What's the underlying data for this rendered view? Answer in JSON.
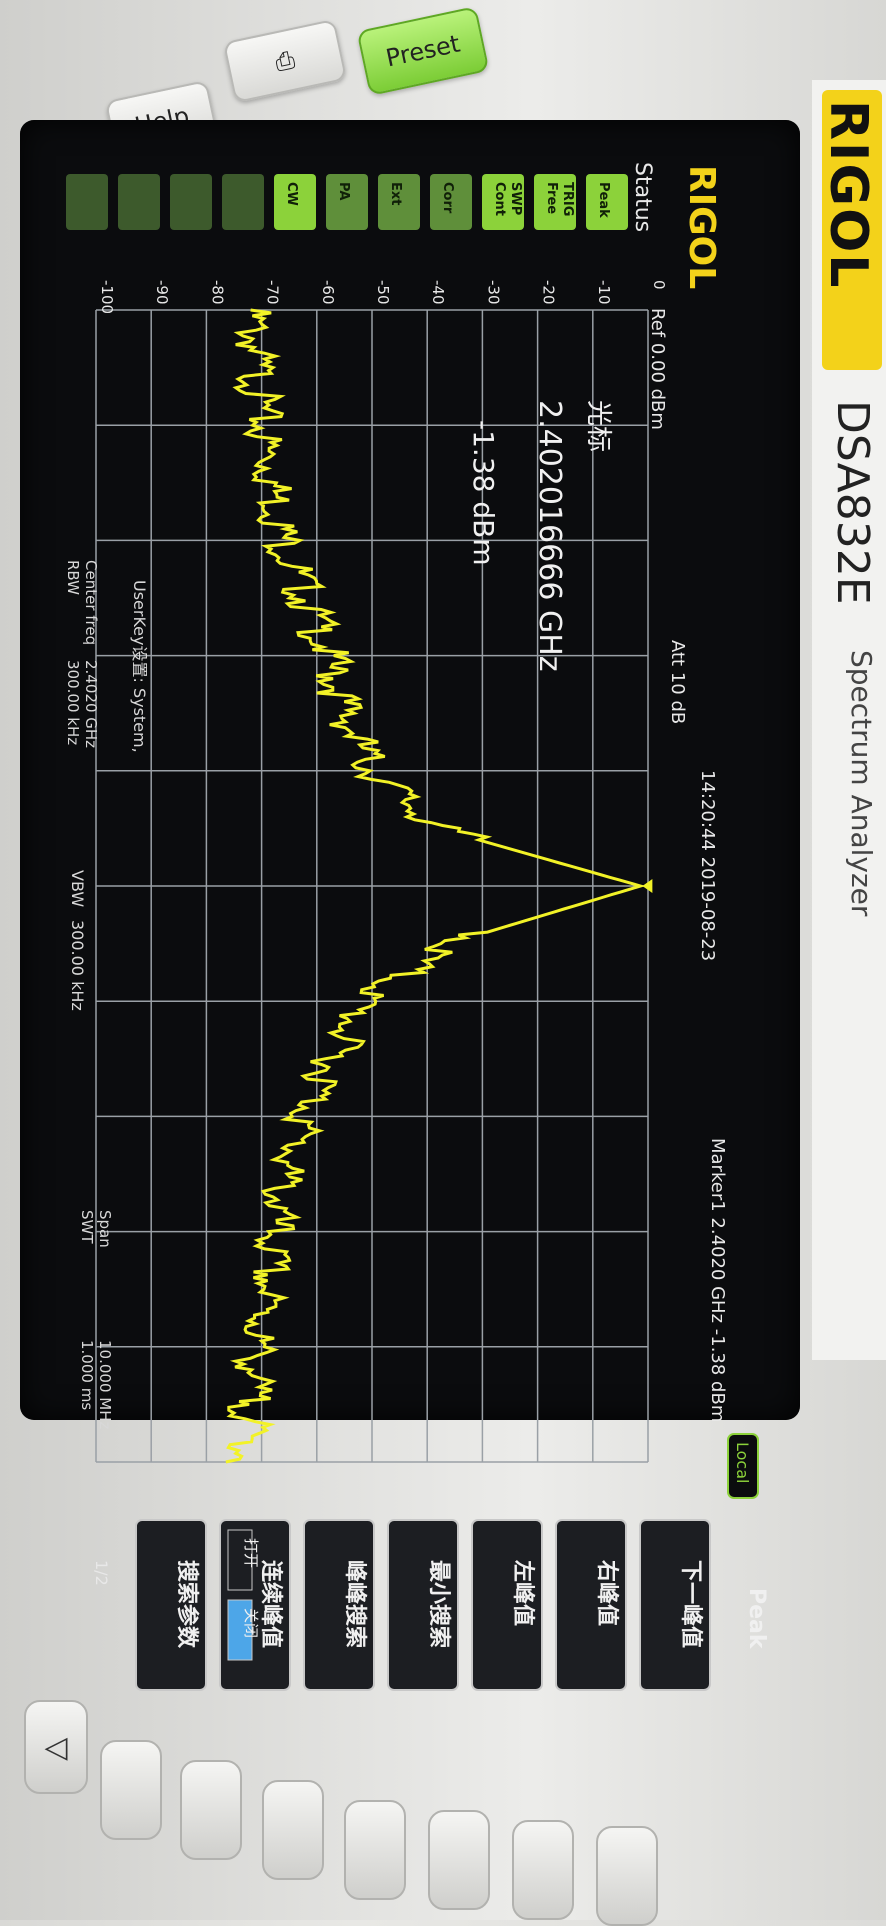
{
  "hardware": {
    "help_label": "Help",
    "preset_label": "Preset",
    "brand": "RIGOL",
    "model": "DSA832E",
    "subtitle": "Spectrum Analyzer"
  },
  "screen": {
    "logo": "RIGOL",
    "status_label": "Status",
    "timestamp": "14:20:44 2019-08-23",
    "local_badge": "Local",
    "ref_level": "Ref 0.00 dBm",
    "att": "Att  10 dB",
    "marker_header": "Marker1  2.4020 GHz  -1.38 dBm",
    "marker_box": {
      "title": "光标",
      "freq": "2.402016666 GHz",
      "level": "-1.38 dBm"
    },
    "user_key_line": "UserKey设置:  System,",
    "bottom": {
      "center_freq_label": "Center freq",
      "center_freq_value": "2.4020 GHz",
      "rbw_label": "RBW",
      "rbw_value": "300.00 kHz",
      "vbw_label": "VBW",
      "vbw_value": "300.00 kHz",
      "span_label": "Span",
      "span_value": "10.000 MHz",
      "swt_label": "SWT",
      "swt_value": "1.000 ms"
    },
    "status_icons": [
      {
        "top": "",
        "bottom": "Peak",
        "icon": "peak-icon",
        "color": "#8cd23a"
      },
      {
        "top": "TRIG",
        "bottom": "Free",
        "icon": "trig-icon",
        "color": "#8cd23a"
      },
      {
        "top": "SWP",
        "bottom": "Cont",
        "icon": "sweep-icon",
        "color": "#8cd23a"
      },
      {
        "top": "",
        "bottom": "Corr",
        "icon": "corr-icon",
        "color": "#5f8f3a"
      },
      {
        "top": "",
        "bottom": "Ext",
        "icon": "ext-icon",
        "color": "#5f8f3a"
      },
      {
        "top": "",
        "bottom": "PA",
        "icon": "pa-icon",
        "color": "#5f8f3a"
      },
      {
        "top": "",
        "bottom": "CW",
        "icon": "cw-icon",
        "color": "#8cd23a"
      },
      {
        "top": "",
        "bottom": "",
        "icon": "blank-icon",
        "color": "#3d5a2c"
      },
      {
        "top": "",
        "bottom": "",
        "icon": "blank-icon",
        "color": "#3d5a2c"
      },
      {
        "top": "",
        "bottom": "",
        "icon": "blank-icon",
        "color": "#3d5a2c"
      },
      {
        "top": "",
        "bottom": "",
        "icon": "blank-icon",
        "color": "#3d5a2c"
      }
    ],
    "softkey_panel": {
      "title": "Peak",
      "keys": [
        "下一峰值",
        "右峰值",
        "左峰值",
        "最小搜索",
        "峰峰搜索",
        "连续峰值",
        "搜索参数"
      ],
      "continuous_options": [
        "打开",
        "关闭"
      ],
      "page": "1/2"
    }
  },
  "colors": {
    "trace": "#f2f227",
    "grid": "#9aa0a6",
    "text": "#e8e8e8",
    "softkey_active": "#4da6e8"
  },
  "chart_data": {
    "type": "line",
    "x": [
      2.397,
      2.3975,
      2.398,
      2.3985,
      2.399,
      2.3995,
      2.4,
      2.4005,
      2.401,
      2.4015,
      2.402,
      2.4025,
      2.403,
      2.4035,
      2.404,
      2.4045,
      2.405,
      2.4055,
      2.406,
      2.4065,
      2.407
    ],
    "series": [
      {
        "values": [
          -72,
          -71,
          -70,
          -68,
          -66,
          -62,
          -58,
          -55,
          -50,
          -38,
          -1.38,
          -36,
          -52,
          -57,
          -62,
          -66,
          -68,
          -69,
          -71,
          -72,
          -73
        ]
      }
    ],
    "xlim": [
      2.397,
      2.407
    ],
    "ylim": [
      -100,
      0
    ],
    "y_ticks": [
      0,
      -10,
      -20,
      -30,
      -40,
      -50,
      -60,
      -70,
      -80,
      -90,
      -100
    ],
    "grid": true
  }
}
